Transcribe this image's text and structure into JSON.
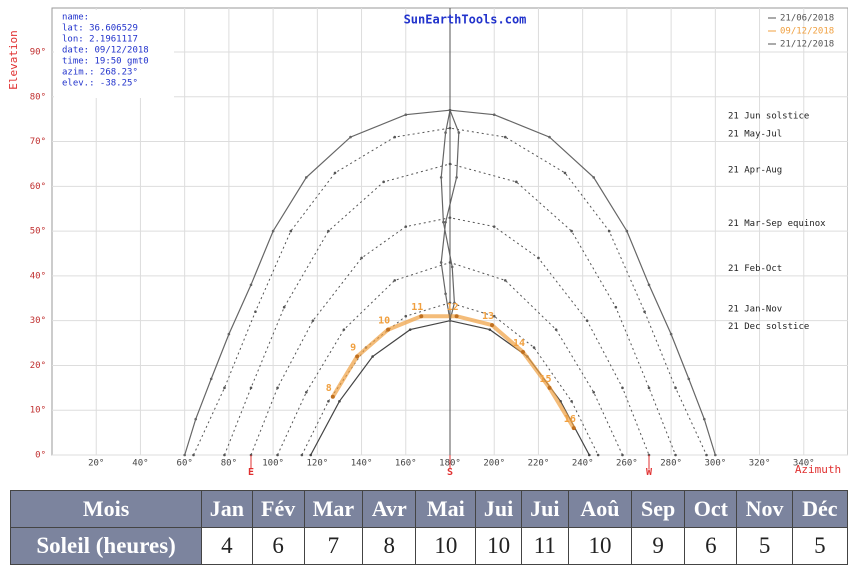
{
  "chart_data": {
    "type": "line",
    "title": "SunEarthTools.com",
    "info": [
      "name:",
      "lat: 36.606529",
      "lon: 2.1961117",
      "date: 09/12/2018",
      "time: 19:50 gmt0",
      "azim.: 268.23°",
      "elev.: -38.25°"
    ],
    "ylabel": "Elevation",
    "xlabel": "Azimuth",
    "legend": [
      {
        "label": "21/06/2018",
        "color": "#555555"
      },
      {
        "label": "09/12/2018",
        "color": "#f0a040"
      },
      {
        "label": "21/12/2018",
        "color": "#555555"
      }
    ],
    "xlim": [
      0,
      360
    ],
    "ylim": [
      0,
      90
    ],
    "grid": true,
    "xticks": [
      {
        "value": 20,
        "label": "20°"
      },
      {
        "value": 40,
        "label": "40°"
      },
      {
        "value": 60,
        "label": "60°"
      },
      {
        "value": 80,
        "label": "80°"
      },
      {
        "value": 100,
        "label": "100°"
      },
      {
        "value": 120,
        "label": "120°"
      },
      {
        "value": 140,
        "label": "140°"
      },
      {
        "value": 160,
        "label": "160°"
      },
      {
        "value": 180,
        "label": "180°"
      },
      {
        "value": 200,
        "label": "200°"
      },
      {
        "value": 220,
        "label": "220°"
      },
      {
        "value": 240,
        "label": "240°"
      },
      {
        "value": 260,
        "label": "260°"
      },
      {
        "value": 280,
        "label": "280°"
      },
      {
        "value": 300,
        "label": "300°"
      },
      {
        "value": 320,
        "label": "320°"
      },
      {
        "value": 340,
        "label": "340°"
      }
    ],
    "yticks": [
      {
        "value": 0,
        "label": "0°"
      },
      {
        "value": 10,
        "label": "10°"
      },
      {
        "value": 20,
        "label": "20°"
      },
      {
        "value": 30,
        "label": "30°"
      },
      {
        "value": 40,
        "label": "40°"
      },
      {
        "value": 50,
        "label": "50°"
      },
      {
        "value": 60,
        "label": "60°"
      },
      {
        "value": 70,
        "label": "70°"
      },
      {
        "value": 80,
        "label": "80°"
      },
      {
        "value": 90,
        "label": "90°"
      }
    ],
    "compass": [
      {
        "label": "E",
        "value": 90
      },
      {
        "label": "S",
        "value": 180
      },
      {
        "label": "W",
        "value": 270
      }
    ],
    "series": [
      {
        "name": "21 Jun  solstice",
        "color": "#666666",
        "dashed": false,
        "x": [
          60,
          65,
          72,
          80,
          90,
          100,
          115,
          135,
          160,
          180,
          200,
          225,
          245,
          260,
          270,
          280,
          288,
          295,
          300
        ],
        "values": [
          0,
          8,
          17,
          27,
          38,
          50,
          62,
          71,
          76,
          77,
          76,
          71,
          62,
          50,
          38,
          27,
          17,
          8,
          0
        ]
      },
      {
        "name": "21 May-Jul",
        "color": "#555555",
        "dashed": true,
        "x": [
          64,
          78,
          92,
          108,
          128,
          155,
          180,
          205,
          232,
          252,
          268,
          282,
          296
        ],
        "values": [
          0,
          15,
          32,
          50,
          63,
          71,
          73,
          71,
          63,
          50,
          32,
          15,
          0
        ]
      },
      {
        "name": "21 Apr-Aug",
        "color": "#555555",
        "dashed": true,
        "x": [
          78,
          90,
          105,
          125,
          150,
          180,
          210,
          235,
          255,
          270,
          282
        ],
        "values": [
          0,
          15,
          33,
          50,
          61,
          65,
          61,
          50,
          33,
          15,
          0
        ]
      },
      {
        "name": "21 Mar-Sep equinox",
        "color": "#555555",
        "dashed": true,
        "x": [
          90,
          102,
          118,
          140,
          160,
          180,
          200,
          220,
          242,
          258,
          270
        ],
        "values": [
          0,
          15,
          30,
          44,
          51,
          53,
          51,
          44,
          30,
          15,
          0
        ]
      },
      {
        "name": "21 Feb-Oct",
        "color": "#555555",
        "dashed": true,
        "x": [
          102,
          115,
          132,
          155,
          180,
          205,
          228,
          245,
          258
        ],
        "values": [
          0,
          14,
          28,
          39,
          43,
          39,
          28,
          14,
          0
        ]
      },
      {
        "name": "21 Jan-Nov",
        "color": "#555555",
        "dashed": true,
        "x": [
          113,
          125,
          142,
          160,
          180,
          200,
          218,
          235,
          247
        ],
        "values": [
          0,
          12,
          24,
          31,
          34,
          31,
          24,
          12,
          0
        ]
      },
      {
        "name": "21 Dec  solstice",
        "color": "#444444",
        "dashed": false,
        "x": [
          117,
          130,
          145,
          162,
          180,
          198,
          215,
          230,
          243
        ],
        "values": [
          0,
          12,
          22,
          28,
          30,
          28,
          22,
          12,
          0
        ]
      },
      {
        "color": "#666666",
        "dashed": false,
        "x": [
          180,
          184,
          183,
          178,
          176,
          178,
          180,
          182,
          181,
          177,
          176,
          178,
          180
        ],
        "values": [
          77,
          72,
          62,
          52,
          43,
          36,
          30,
          34,
          42,
          52,
          62,
          72,
          77
        ]
      }
    ],
    "today": {
      "color": "#f0a040",
      "labels": [
        "8",
        "9",
        "10",
        "11",
        "12",
        "13",
        "14",
        "15",
        "16"
      ],
      "x": [
        127,
        138,
        152,
        167,
        183,
        199,
        213,
        225,
        236
      ],
      "values": [
        13,
        22,
        28,
        31,
        31,
        29,
        23,
        15,
        6
      ]
    }
  },
  "table": {
    "header": [
      "Mois",
      "Jan",
      "Fév",
      "Mar",
      "Avr",
      "Mai",
      "Jui",
      "Jui",
      "Aoû",
      "Sep",
      "Oct",
      "Nov",
      "Déc"
    ],
    "rows": [
      [
        "Soleil (heures)",
        4,
        6,
        7,
        8,
        10,
        10,
        11,
        10,
        9,
        6,
        5,
        5
      ]
    ]
  }
}
